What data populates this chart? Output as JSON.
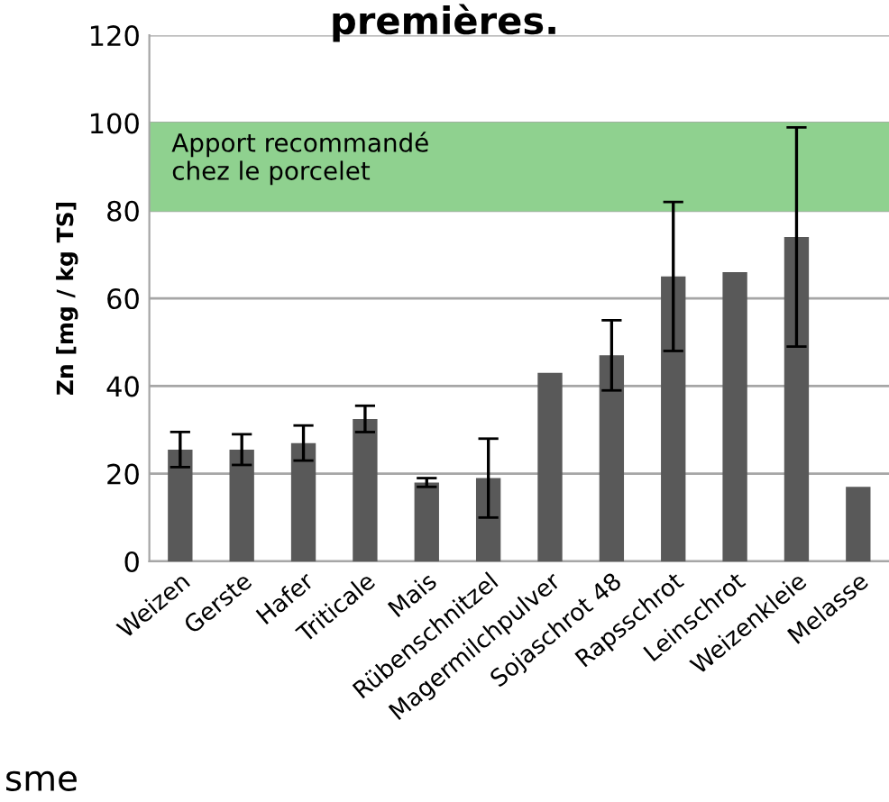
{
  "chart_data": {
    "type": "bar",
    "title": "premières.",
    "ylabel": "Zn [mg / kg TS]",
    "categories": [
      "Weizen",
      "Gerste",
      "Hafer",
      "Triticale",
      "Mais",
      "Rübenschnitzel",
      "Magermilchpulver",
      "Sojaschrot 48",
      "Rapsschrot",
      "Leinschrot",
      "Weizenkleie",
      "Melasse"
    ],
    "values": [
      25.5,
      25.5,
      27,
      32.5,
      18,
      19,
      43,
      47,
      65,
      66,
      74,
      17
    ],
    "errors": [
      4,
      3.5,
      4,
      3,
      1,
      9,
      null,
      8,
      17,
      null,
      25,
      null
    ],
    "color": "#595959",
    "ylim": [
      0,
      120
    ],
    "yticks": [
      0,
      20,
      40,
      60,
      80,
      100,
      120
    ],
    "grid": "y",
    "bands": [
      {
        "axis": "y",
        "from": 80,
        "to": 100,
        "label": "Apport recommandé\nchez le porcelet",
        "color": "#8fd18f"
      }
    ],
    "annotations": [
      "sme"
    ]
  }
}
